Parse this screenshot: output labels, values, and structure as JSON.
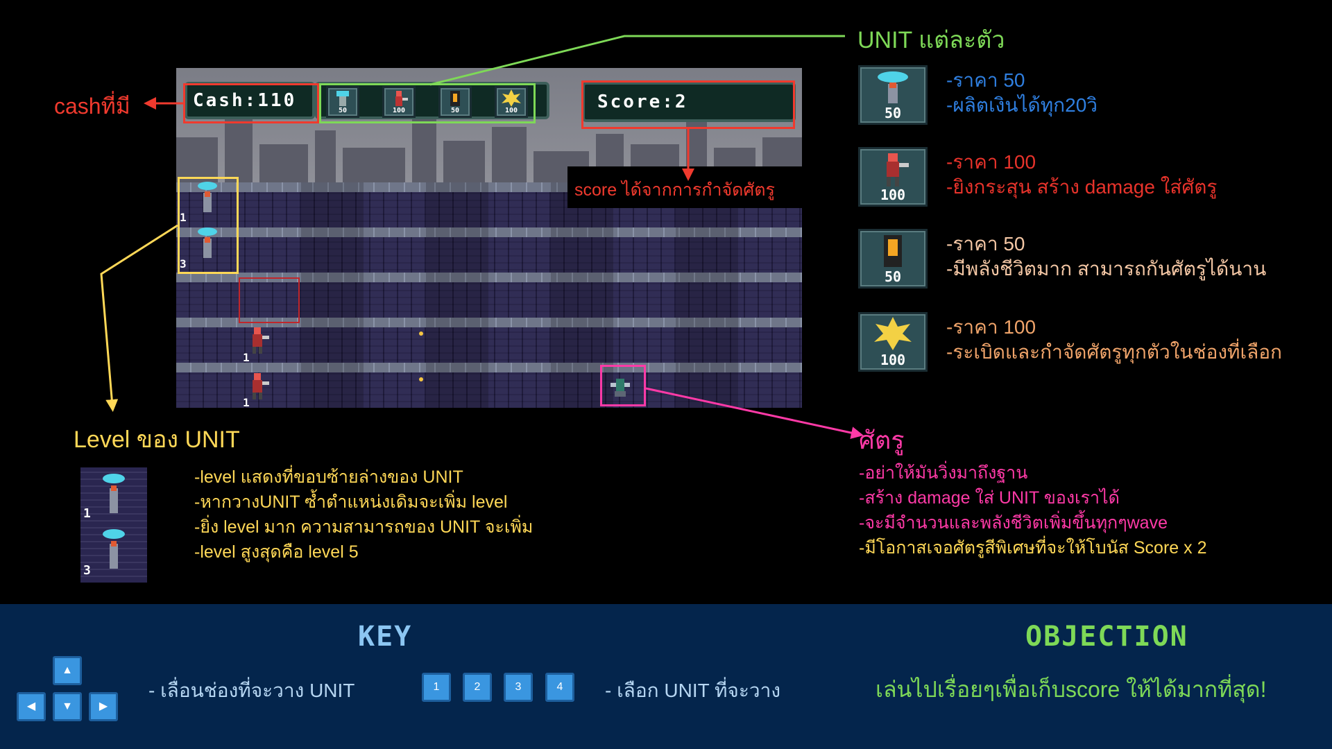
{
  "hud": {
    "cash_text": "Cash:110",
    "score_text": "Score:2",
    "shop": [
      {
        "icon": "drone-tower-icon",
        "cost": "50"
      },
      {
        "icon": "gunner-icon",
        "cost": "100"
      },
      {
        "icon": "wall-block-icon",
        "cost": "50"
      },
      {
        "icon": "explosion-icon",
        "cost": "100"
      }
    ]
  },
  "lanes": {
    "levels": [
      "1",
      "3",
      "1",
      "1"
    ]
  },
  "annotations": {
    "cash_label": "cashที่มี",
    "unit_label": "UNIT แต่ละตัว",
    "score_label": "score ได้จากการกำจัดศัตรู",
    "level_title": "Level ของ UNIT",
    "enemy_title": "ศัตรู"
  },
  "units": [
    {
      "cost": "50",
      "lines": [
        "-ราคา 50",
        "-ผลิตเงินได้ทุก20วิ"
      ],
      "color": "#2f7fe0"
    },
    {
      "cost": "100",
      "lines": [
        "-ราคา 100",
        "-ยิงกระสุน สร้าง damage ใส่ศัตรู"
      ],
      "color": "#e8332b"
    },
    {
      "cost": "50",
      "lines": [
        "-ราคา 50",
        "-มีพลังชีวิตมาก สามารถกันศัตรูได้นาน"
      ],
      "color": "#f4c7a5"
    },
    {
      "cost": "100",
      "lines": [
        "-ราคา 100",
        "-ระเบิดและกำจัดศัตรูทุกตัวในช่องที่เลือก"
      ],
      "color": "#f0a46a"
    }
  ],
  "level_info": {
    "example_levels": [
      "1",
      "3"
    ],
    "lines": [
      "-level แสดงที่ขอบซ้ายล่างของ UNIT",
      "-หากวางUNIT ซ้ำตำแหน่งเดิมจะเพิ่ม level",
      "-ยิ่ง level มาก ความสามารถของ UNIT จะเพิ่ม",
      "-level สูงสุดคือ level 5"
    ]
  },
  "enemy_info": {
    "lines": [
      "-อย่าให้มันวิ่งมาถึงฐาน",
      "-สร้าง damage ใส่ UNIT ของเราได้",
      "-จะมีจำนวนและพลังชีวิตเพิ่มขึ้นทุกๆwave",
      "-มีโอกาสเจอศัตรูสีพิเศษที่จะให้โบนัส Score x 2"
    ]
  },
  "footer": {
    "key_title": "KEY",
    "arrow_desc": "- เลื่อนช่องที่จะวาง UNIT",
    "number_keys": [
      "1",
      "2",
      "3",
      "4"
    ],
    "number_desc": "- เลือก UNIT ที่จะวาง",
    "objective_title": "OBJECTION",
    "objective_text": "เล่นไปเรื่อยๆเพื่อเก็บscore ให้ได้มากที่สุด!"
  },
  "colors": {
    "cash_red": "#f03a2e",
    "unit_green": "#7ed957",
    "level_yellow": "#ffd857",
    "enemy_pink": "#ff3aa7",
    "footer_bg": "#04254c",
    "key_title": "#8cc6f2",
    "objective_green": "#7ed957"
  }
}
